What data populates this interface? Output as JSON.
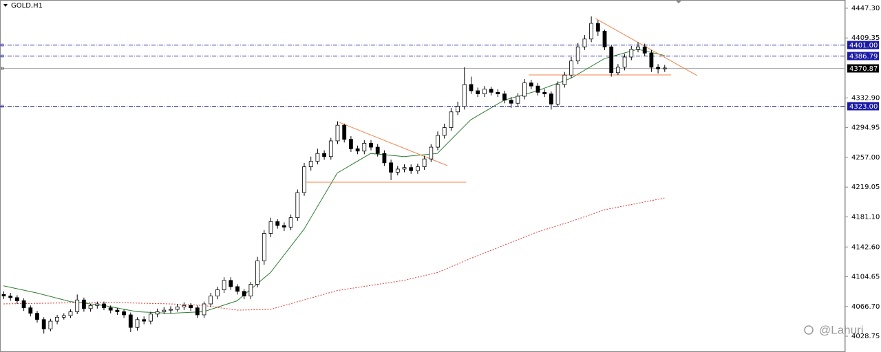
{
  "chart_data": {
    "type": "candlestick",
    "title": "GOLD,H1",
    "ylim": [
      4008.6,
      4457.8
    ],
    "yticks": [
      {
        "value": 4447.3,
        "label": "4447.30"
      },
      4409.35,
      {
        "value": 4332.9,
        "label": "4332.90"
      },
      4294.95,
      {
        "value": 4257,
        "label": "4257.00"
      },
      4219.05,
      {
        "value": 4181.1,
        "label": "4181.10"
      },
      {
        "value": 4142.6,
        "label": "4142.60"
      },
      4104.65,
      {
        "value": 4066.7,
        "label": "4066.70"
      },
      4028.75
    ],
    "candles": {
      "up_color": "#ffffff",
      "down_color": "#000000",
      "open": [
        4082,
        4080,
        4078,
        4074,
        4065,
        4058,
        4050,
        4038,
        4048,
        4053,
        4055,
        4060,
        4075,
        4064,
        4068,
        4070,
        4065,
        4062,
        4060,
        4056,
        4040,
        4050,
        4048,
        4057,
        4060,
        4062,
        4063,
        4066,
        4068,
        4065,
        4056,
        4070,
        4080,
        4088,
        4100,
        4092,
        4086,
        4080,
        4095,
        4125,
        4160,
        4175,
        4170,
        4168,
        4180,
        4212,
        4245,
        4252,
        4262,
        4258,
        4278,
        4298,
        4280,
        4268,
        4265,
        4275,
        4270,
        4262,
        4250,
        4238,
        4242,
        4244,
        4240,
        4245,
        4255,
        4270,
        4285,
        4295,
        4315,
        4322,
        4350,
        4342,
        4338,
        4344,
        4340,
        4338,
        4330,
        4326,
        4335,
        4352,
        4348,
        4340,
        4338,
        4325,
        4350,
        4362,
        4380,
        4398,
        4408,
        4428,
        4418,
        4398,
        4365,
        4372,
        4385,
        4395,
        4398,
        4390,
        4372,
        4370
      ],
      "high": [
        4086,
        4084,
        4081,
        4077,
        4068,
        4061,
        4053,
        4051,
        4056,
        4058,
        4063,
        4082,
        4078,
        4070,
        4073,
        4073,
        4068,
        4065,
        4063,
        4059,
        4053,
        4054,
        4060,
        4064,
        4066,
        4067,
        4070,
        4072,
        4071,
        4068,
        4073,
        4084,
        4092,
        4104,
        4104,
        4095,
        4089,
        4098,
        4130,
        4164,
        4180,
        4178,
        4174,
        4184,
        4216,
        4250,
        4258,
        4268,
        4266,
        4282,
        4303,
        4300,
        4284,
        4272,
        4279,
        4279,
        4274,
        4266,
        4254,
        4246,
        4248,
        4248,
        4249,
        4259,
        4274,
        4290,
        4300,
        4320,
        4328,
        4372,
        4360,
        4346,
        4348,
        4347,
        4344,
        4342,
        4334,
        4339,
        4357,
        4356,
        4352,
        4344,
        4341,
        4354,
        4366,
        4385,
        4403,
        4413,
        4437,
        4432,
        4420,
        4400,
        4376,
        4389,
        4399,
        4404,
        4402,
        4394,
        4376,
        4375
      ],
      "low": [
        4076,
        4074,
        4070,
        4061,
        4054,
        4046,
        4032,
        4035,
        4044,
        4050,
        4052,
        4057,
        4060,
        4060,
        4064,
        4062,
        4058,
        4056,
        4052,
        4034,
        4036,
        4044,
        4044,
        4053,
        4057,
        4058,
        4060,
        4062,
        4061,
        4052,
        4052,
        4066,
        4076,
        4084,
        4088,
        4082,
        4076,
        4076,
        4091,
        4120,
        4155,
        4166,
        4163,
        4164,
        4176,
        4208,
        4240,
        4248,
        4254,
        4254,
        4274,
        4276,
        4264,
        4261,
        4261,
        4266,
        4258,
        4246,
        4228,
        4234,
        4238,
        4236,
        4236,
        4241,
        4251,
        4266,
        4281,
        4291,
        4311,
        4318,
        4338,
        4334,
        4334,
        4336,
        4334,
        4326,
        4320,
        4322,
        4331,
        4344,
        4336,
        4334,
        4318,
        4321,
        4346,
        4358,
        4376,
        4394,
        4404,
        4412,
        4394,
        4360,
        4362,
        4368,
        4381,
        4391,
        4386,
        4366,
        4364,
        4366
      ],
      "close": [
        4080,
        4078,
        4074,
        4065,
        4058,
        4050,
        4038,
        4048,
        4053,
        4055,
        4060,
        4075,
        4064,
        4068,
        4070,
        4065,
        4062,
        4060,
        4056,
        4040,
        4050,
        4048,
        4057,
        4060,
        4062,
        4063,
        4066,
        4068,
        4065,
        4056,
        4070,
        4080,
        4088,
        4100,
        4092,
        4086,
        4080,
        4095,
        4125,
        4160,
        4175,
        4170,
        4168,
        4180,
        4212,
        4245,
        4252,
        4262,
        4258,
        4278,
        4298,
        4280,
        4268,
        4265,
        4275,
        4270,
        4262,
        4250,
        4238,
        4242,
        4244,
        4240,
        4245,
        4255,
        4270,
        4285,
        4295,
        4315,
        4322,
        4350,
        4342,
        4338,
        4344,
        4340,
        4338,
        4330,
        4326,
        4335,
        4352,
        4348,
        4340,
        4338,
        4325,
        4350,
        4362,
        4380,
        4398,
        4408,
        4428,
        4418,
        4398,
        4365,
        4372,
        4385,
        4395,
        4398,
        4390,
        4372,
        4370,
        4371
      ]
    },
    "moving_averages": [
      {
        "color": "#2e7d32",
        "style": "solid",
        "x": [
          0,
          5,
          10,
          15,
          20,
          25,
          30,
          35,
          40,
          45,
          50,
          55,
          60,
          65,
          70,
          75,
          80,
          85,
          90,
          95,
          99
        ],
        "values": [
          4093,
          4084,
          4073,
          4068,
          4060,
          4058,
          4060,
          4074,
          4110,
          4165,
          4237,
          4262,
          4258,
          4262,
          4305,
          4330,
          4342,
          4358,
          4383,
          4395,
          4387
        ]
      },
      {
        "color": "#e53935",
        "style": "dotted",
        "x": [
          0,
          15,
          25,
          30,
          35,
          40,
          45,
          50,
          60,
          65,
          70,
          75,
          80,
          85,
          90,
          99
        ],
        "values": [
          4070,
          4072,
          4070,
          4068,
          4062,
          4063,
          4075,
          4087,
          4100,
          4110,
          4128,
          4145,
          4162,
          4175,
          4190,
          4205
        ]
      }
    ],
    "trendlines": [
      {
        "color": "#f0804a",
        "x": [
          50.3,
          66.5
        ],
        "values": [
          4301.7,
          4246.4
        ]
      },
      {
        "color": "#f0804a",
        "x": [
          45.4,
          69.3
        ],
        "values": [
          4225.3,
          4225.3
        ]
      },
      {
        "color": "#f0804a",
        "x": [
          88.7,
          103.9
        ],
        "values": [
          4434.1,
          4361.3
        ]
      },
      {
        "color": "#f0804a",
        "x": [
          78.7,
          100
        ],
        "values": [
          4362.2,
          4362.2
        ]
      }
    ],
    "levels": [
      {
        "value": 4401,
        "label": "4401.00",
        "color": "#1a1aa6",
        "style": "dashdot"
      },
      {
        "value": 4386.79,
        "color": "#1a1aa6",
        "style": "dashdot"
      },
      {
        "value": 4323,
        "label": "4323.00",
        "color": "#1a1aa6",
        "style": "dashdot"
      },
      {
        "value": 4370.87,
        "color": "#000000",
        "line_color": "#b0b0b0",
        "style": "solid"
      }
    ],
    "watermark": "@Lahuri"
  }
}
